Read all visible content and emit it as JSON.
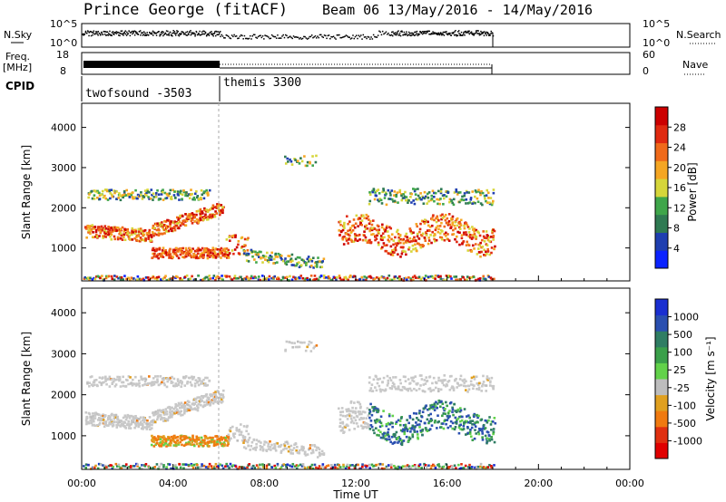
{
  "header": {
    "station": "Prince George (fitACF)",
    "beam_info": "Beam 06  13/May/2016 - 14/May/2016"
  },
  "status_panels": {
    "nsky_label": "N.Sky",
    "nsky_ticks": [
      "10^5",
      "10^0"
    ],
    "nsearch_label": "N.Search",
    "freq_label_1": "Freq.",
    "freq_label_2": "[MHz]",
    "freq_ticks": [
      "18",
      "8"
    ],
    "nave_label": "Nave",
    "nave_ticks": [
      "60",
      "0"
    ],
    "cpid_label": "CPID",
    "cpid_segments": [
      {
        "name": "twofsound -3503",
        "start_hour": 0,
        "end_hour": 6
      },
      {
        "name": "themis 3300",
        "start_hour": 6,
        "end_hour": 18
      }
    ]
  },
  "chart_data": [
    {
      "type": "heatmap",
      "title": "Power",
      "xlabel": "",
      "ylabel": "Slant Range [km]",
      "xlim": [
        0,
        24
      ],
      "ylim": [
        180,
        4600
      ],
      "yticks": [
        1000,
        2000,
        3000,
        4000
      ],
      "colorbar_label": "Power [dB]",
      "colorbar_ticks": [
        "4",
        "8",
        "12",
        "16",
        "20",
        "24",
        "28"
      ],
      "colorbar_range": [
        0,
        30
      ],
      "colorbar_colors": [
        "#0b23ff",
        "#1f3fb0",
        "#2f7a52",
        "#3fa64a",
        "#d6d63a",
        "#f5a623",
        "#f06a1a",
        "#e02a10",
        "#cc0000"
      ]
    },
    {
      "type": "heatmap",
      "title": "Velocity",
      "xlabel": "Time UT",
      "ylabel": "Slant Range [km]",
      "xlim": [
        0,
        24
      ],
      "ylim": [
        180,
        4600
      ],
      "yticks": [
        1000,
        2000,
        3000,
        4000
      ],
      "xticks": [
        "00:00",
        "04:00",
        "08:00",
        "12:00",
        "16:00",
        "20:00",
        "00:00"
      ],
      "colorbar_label": "Velocity [m s⁻¹]",
      "colorbar_ticks": [
        "1000",
        "500",
        "100",
        "25",
        "-25",
        "-100",
        "-500",
        "-1000"
      ],
      "colorbar_colors": [
        "#1a2fd1",
        "#2a4fb0",
        "#2f7d63",
        "#3aa04a",
        "#62d24a",
        "#bdbdbd",
        "#e0a020",
        "#f07a10",
        "#e03010",
        "#e00000"
      ]
    }
  ]
}
